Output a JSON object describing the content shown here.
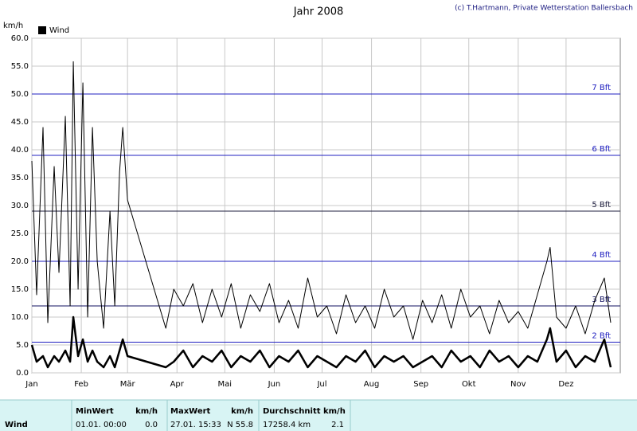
{
  "chart_data": {
    "type": "line",
    "title": "Jahr 2008",
    "credit": "(c) T.Hartmann, Private Wetterstation Ballersbach",
    "ylabel": "km/h",
    "xlim": [
      1,
      370
    ],
    "ylim": [
      0,
      60
    ],
    "yticks": [
      {
        "value": 0,
        "label": "0.0"
      },
      {
        "value": 5,
        "label": "5.0"
      },
      {
        "value": 10,
        "label": "10.0"
      },
      {
        "value": 15,
        "label": "15.0"
      },
      {
        "value": 20,
        "label": "20.0"
      },
      {
        "value": 25,
        "label": "25.0"
      },
      {
        "value": 30,
        "label": "30.0"
      },
      {
        "value": 35,
        "label": "35.0"
      },
      {
        "value": 40,
        "label": "40.0"
      },
      {
        "value": 45,
        "label": "45.0"
      },
      {
        "value": 50,
        "label": "50.0"
      },
      {
        "value": 55,
        "label": "55.0"
      },
      {
        "value": 60,
        "label": "60.0"
      }
    ],
    "xticks": [
      {
        "value": 1,
        "label": "Jan"
      },
      {
        "value": 32,
        "label": "Feb"
      },
      {
        "value": 61,
        "label": "Mär"
      },
      {
        "value": 92,
        "label": "Apr"
      },
      {
        "value": 122,
        "label": "Mai"
      },
      {
        "value": 153,
        "label": "Jun"
      },
      {
        "value": 183,
        "label": "Jul"
      },
      {
        "value": 214,
        "label": "Aug"
      },
      {
        "value": 245,
        "label": "Sep"
      },
      {
        "value": 275,
        "label": "Okt"
      },
      {
        "value": 306,
        "label": "Nov"
      },
      {
        "value": 336,
        "label": "Dez"
      }
    ],
    "grid": true,
    "reference_lines": [
      {
        "value": 5.5,
        "label": "2 Bft",
        "color": "#2020c0"
      },
      {
        "value": 12,
        "label": "3 Bft",
        "color": "#101060"
      },
      {
        "value": 20,
        "label": "4 Bft",
        "color": "#2020c0"
      },
      {
        "value": 29,
        "label": "5 Bft",
        "color": "#202040"
      },
      {
        "value": 39,
        "label": "6 Bft",
        "color": "#2020c0"
      },
      {
        "value": 50,
        "label": "7 Bft",
        "color": "#2020c0"
      }
    ],
    "x": [
      1,
      4,
      8,
      11,
      15,
      18,
      22,
      25,
      27,
      30,
      33,
      36,
      39,
      42,
      46,
      50,
      53,
      56,
      58,
      61,
      85,
      90,
      96,
      102,
      108,
      114,
      120,
      126,
      132,
      138,
      144,
      150,
      156,
      162,
      168,
      174,
      180,
      186,
      192,
      198,
      204,
      210,
      216,
      222,
      228,
      234,
      240,
      246,
      252,
      258,
      264,
      270,
      276,
      282,
      288,
      294,
      300,
      306,
      312,
      318,
      324,
      326,
      330,
      336,
      342,
      348,
      354,
      360,
      364
    ],
    "series": [
      {
        "name": "Wind",
        "color": "#000000",
        "width": 2.5,
        "values": [
          5,
          2,
          3,
          1,
          3,
          2,
          4,
          2,
          10,
          3,
          6,
          2,
          4,
          2,
          1,
          3,
          1,
          4,
          6,
          3,
          1,
          2,
          4,
          1,
          3,
          2,
          4,
          1,
          3,
          2,
          4,
          1,
          3,
          2,
          4,
          1,
          3,
          2,
          1,
          3,
          2,
          4,
          1,
          3,
          2,
          3,
          1,
          2,
          3,
          1,
          4,
          2,
          3,
          1,
          4,
          2,
          3,
          1,
          3,
          2,
          6,
          8,
          2,
          4,
          1,
          3,
          2,
          6,
          1
        ]
      },
      {
        "color": "#000000",
        "width": 1,
        "values": [
          38,
          14,
          44,
          9,
          37,
          18,
          46,
          12,
          55.8,
          15,
          52,
          10,
          44,
          20,
          8,
          29,
          12,
          36,
          44,
          31,
          8,
          15,
          12,
          16,
          9,
          15,
          10,
          16,
          8,
          14,
          11,
          16,
          9,
          13,
          8,
          17,
          10,
          12,
          7,
          14,
          9,
          12,
          8,
          15,
          10,
          12,
          6,
          13,
          9,
          14,
          8,
          15,
          10,
          12,
          7,
          13,
          9,
          11,
          8,
          14,
          20,
          22.5,
          10,
          8,
          12,
          7,
          13,
          17,
          9
        ]
      }
    ]
  },
  "footer": {
    "row_label": "Wind",
    "min_header": "MinWert",
    "min_unit": "km/h",
    "min_time": "01.01.  00:00",
    "min_value": "0.0",
    "max_header": "MaxWert",
    "max_unit": "km/h",
    "max_time": "27.01.  15:33",
    "max_value": "N 55.8",
    "avg_header": "Durchschnitt km/h",
    "avg_total": "17258.4 km",
    "avg_value": "2.1"
  }
}
